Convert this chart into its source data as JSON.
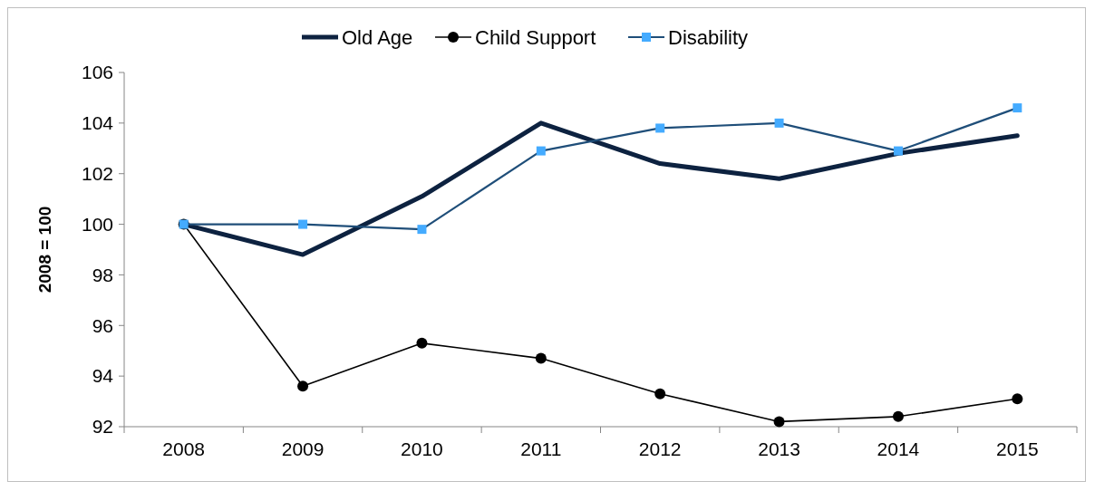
{
  "chart_data": {
    "type": "line",
    "ylabel": "2008 = 100",
    "categories": [
      "2008",
      "2009",
      "2010",
      "2011",
      "2012",
      "2013",
      "2014",
      "2015"
    ],
    "ylim": [
      92,
      106
    ],
    "yticks": [
      92,
      94,
      96,
      98,
      100,
      102,
      104,
      106
    ],
    "grid": false,
    "legend": "top",
    "series": [
      {
        "name": "Old Age",
        "color": "#0d2240",
        "marker": "none",
        "values": [
          100,
          98.8,
          101.1,
          104.0,
          102.4,
          101.8,
          102.8,
          103.5
        ]
      },
      {
        "name": "Child Support",
        "color": "#000000",
        "marker": "circle",
        "values": [
          100,
          93.6,
          95.3,
          94.7,
          93.3,
          92.2,
          92.4,
          93.1
        ]
      },
      {
        "name": "Disability",
        "color": "#1f4e79",
        "marker": "square",
        "values": [
          100,
          100,
          99.8,
          102.9,
          103.8,
          104.0,
          102.9,
          104.6
        ]
      }
    ]
  }
}
